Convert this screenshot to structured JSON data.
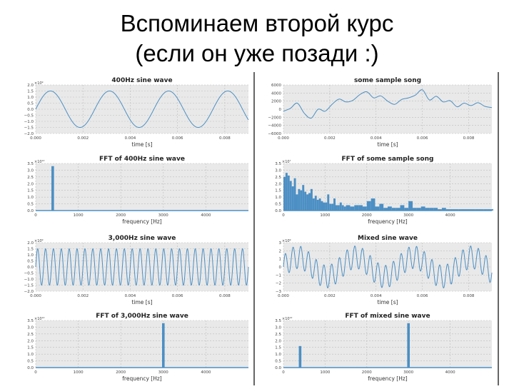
{
  "slide": {
    "title_line1": "Вспоминаем второй курс",
    "title_line2": "(если он уже позади :)"
  },
  "colors": {
    "line": "#4c8fc4",
    "plot_bg": "#e9e9e9",
    "grid": "#bdbdbd"
  },
  "chart_data": [
    {
      "id": "c400",
      "type": "line",
      "title": "400Hz sine wave",
      "xlabel": "time [s]",
      "ylabel": "",
      "y_exponent": "×10⁹",
      "xlim": [
        0,
        0.009
      ],
      "ylim": [
        -2.0,
        2.0
      ],
      "xticks": [
        "0.000",
        "0.002",
        "0.004",
        "0.006",
        "0.008"
      ],
      "yticks": [
        "2.0",
        "1.5",
        "1.0",
        "0.5",
        "0.0",
        "−0.5",
        "−1.0",
        "−1.5",
        "−2.0"
      ],
      "series": [
        {
          "frequency_hz": 400,
          "amplitude": 1.5
        }
      ]
    },
    {
      "id": "fft400",
      "type": "bar",
      "title": "FFT of 400Hz sine wave",
      "xlabel": "frequency [Hz]",
      "ylabel": "",
      "y_exponent": "×10¹²",
      "xlim": [
        0,
        5000
      ],
      "ylim": [
        0,
        3.5
      ],
      "xticks": [
        "0",
        "1000",
        "2000",
        "3000",
        "4000"
      ],
      "yticks": [
        "3.5",
        "3.0",
        "2.5",
        "2.0",
        "1.5",
        "1.0",
        "0.5",
        "0.0"
      ],
      "peaks": [
        {
          "x": 400,
          "y": 3.3
        }
      ]
    },
    {
      "id": "c3000",
      "type": "line",
      "title": "3,000Hz sine wave",
      "xlabel": "time [s]",
      "ylabel": "",
      "y_exponent": "×10⁹",
      "xlim": [
        0,
        0.009
      ],
      "ylim": [
        -2.0,
        2.0
      ],
      "xticks": [
        "0.000",
        "0.002",
        "0.004",
        "0.006",
        "0.008"
      ],
      "yticks": [
        "2.0",
        "1.5",
        "1.0",
        "0.5",
        "0.0",
        "−0.5",
        "−1.0",
        "−1.5",
        "−2.0"
      ],
      "series": [
        {
          "frequency_hz": 3000,
          "amplitude": 1.5
        }
      ]
    },
    {
      "id": "fft3000",
      "type": "bar",
      "title": "FFT of 3,000Hz sine wave",
      "xlabel": "frequency [Hz]",
      "ylabel": "",
      "y_exponent": "×10¹²",
      "xlim": [
        0,
        5000
      ],
      "ylim": [
        0,
        3.5
      ],
      "xticks": [
        "0",
        "1000",
        "2000",
        "3000",
        "4000"
      ],
      "yticks": [
        "3.5",
        "3.0",
        "2.5",
        "2.0",
        "1.5",
        "1.0",
        "0.5",
        "0.0"
      ],
      "peaks": [
        {
          "x": 3000,
          "y": 3.3
        }
      ]
    },
    {
      "id": "song",
      "type": "line",
      "title": "some sample song",
      "xlabel": "time [s]",
      "ylabel": "",
      "y_exponent": "",
      "xlim": [
        0,
        0.009
      ],
      "ylim": [
        -6000,
        6000
      ],
      "xticks": [
        "0.000",
        "0.002",
        "0.004",
        "0.006",
        "0.008"
      ],
      "yticks": [
        "6000",
        "4000",
        "2000",
        "0",
        "−2000",
        "−4000",
        "−6000"
      ],
      "series": [
        {
          "x": [
            0.0,
            0.0003,
            0.0006,
            0.0009,
            0.0012,
            0.0015,
            0.0018,
            0.0021,
            0.0024,
            0.0027,
            0.003,
            0.0033,
            0.0036,
            0.0039,
            0.0042,
            0.0045,
            0.0048,
            0.0051,
            0.0054,
            0.0057,
            0.006,
            0.0063,
            0.0066,
            0.0069,
            0.0072,
            0.0075,
            0.0078,
            0.0081,
            0.0084,
            0.0087,
            0.009
          ],
          "y": [
            -500,
            200,
            1500,
            -1000,
            -2200,
            0,
            -500,
            1200,
            2500,
            1800,
            2200,
            3600,
            4300,
            2800,
            3300,
            2000,
            1200,
            2400,
            2800,
            3500,
            4800,
            2300,
            3200,
            1800,
            2100,
            600,
            1500,
            900,
            1600,
            700,
            400
          ]
        }
      ]
    },
    {
      "id": "fftsong",
      "type": "bar",
      "title": "FFT of some sample song",
      "xlabel": "frequency [Hz]",
      "ylabel": "",
      "y_exponent": "×10⁷",
      "xlim": [
        0,
        5000
      ],
      "ylim": [
        0,
        3.5
      ],
      "xticks": [
        "0",
        "1000",
        "2000",
        "3000",
        "4000"
      ],
      "yticks": [
        "3.5",
        "3.0",
        "2.5",
        "2.0",
        "1.5",
        "1.0",
        "0.5",
        "0.0"
      ],
      "spectrum": {
        "x": [
          0,
          50,
          100,
          150,
          200,
          250,
          300,
          350,
          400,
          450,
          500,
          550,
          600,
          650,
          700,
          750,
          800,
          850,
          900,
          950,
          1000,
          1050,
          1100,
          1150,
          1200,
          1250,
          1300,
          1350,
          1400,
          1450,
          1500,
          1600,
          1700,
          1800,
          1900,
          2000,
          2100,
          2200,
          2300,
          2400,
          2500,
          2600,
          2700,
          2800,
          2900,
          3000,
          3100,
          3200,
          3300,
          3400,
          3500,
          3600,
          3700,
          3800,
          3900,
          4000,
          4200,
          4400,
          4600,
          4800,
          5000
        ],
        "y": [
          2.5,
          2.8,
          2.6,
          2.2,
          1.8,
          2.4,
          1.2,
          1.6,
          1.5,
          1.9,
          1.4,
          1.2,
          1.3,
          1.6,
          0.9,
          1.1,
          0.8,
          0.9,
          0.7,
          0.6,
          0.6,
          1.2,
          0.5,
          0.5,
          0.9,
          0.4,
          0.4,
          0.6,
          0.4,
          0.3,
          0.4,
          0.3,
          0.4,
          0.4,
          0.3,
          0.7,
          0.9,
          0.3,
          0.5,
          0.2,
          0.3,
          0.2,
          0.2,
          0.4,
          0.2,
          0.7,
          0.2,
          0.2,
          0.3,
          0.2,
          0.2,
          0.2,
          0.1,
          0.2,
          0.1,
          0.1,
          0.1,
          0.1,
          0.1,
          0.1,
          0.1
        ]
      }
    },
    {
      "id": "mixed",
      "type": "line",
      "title": "Mixed sine wave",
      "xlabel": "time [s]",
      "ylabel": "",
      "y_exponent": "×10⁹",
      "xlim": [
        0,
        0.009
      ],
      "ylim": [
        -3,
        3
      ],
      "xticks": [
        "0.000",
        "0.002",
        "0.004",
        "0.006",
        "0.008"
      ],
      "yticks": [
        "3",
        "2",
        "1",
        "0",
        "−1",
        "−2",
        "−3"
      ],
      "series": [
        {
          "components": [
            {
              "frequency_hz": 400,
              "amplitude": 1.2
            },
            {
              "frequency_hz": 3000,
              "amplitude": 1.4
            }
          ]
        }
      ]
    },
    {
      "id": "fftmixed",
      "type": "bar",
      "title": "FFT of mixed sine wave",
      "xlabel": "frequency [Hz]",
      "ylabel": "",
      "y_exponent": "×10¹²",
      "xlim": [
        0,
        5000
      ],
      "ylim": [
        0,
        3.5
      ],
      "xticks": [
        "0",
        "1000",
        "2000",
        "3000",
        "4000"
      ],
      "yticks": [
        "3.5",
        "3.0",
        "2.5",
        "2.0",
        "1.5",
        "1.0",
        "0.5",
        "0.0"
      ],
      "peaks": [
        {
          "x": 400,
          "y": 1.6
        },
        {
          "x": 3000,
          "y": 3.3
        }
      ]
    }
  ]
}
